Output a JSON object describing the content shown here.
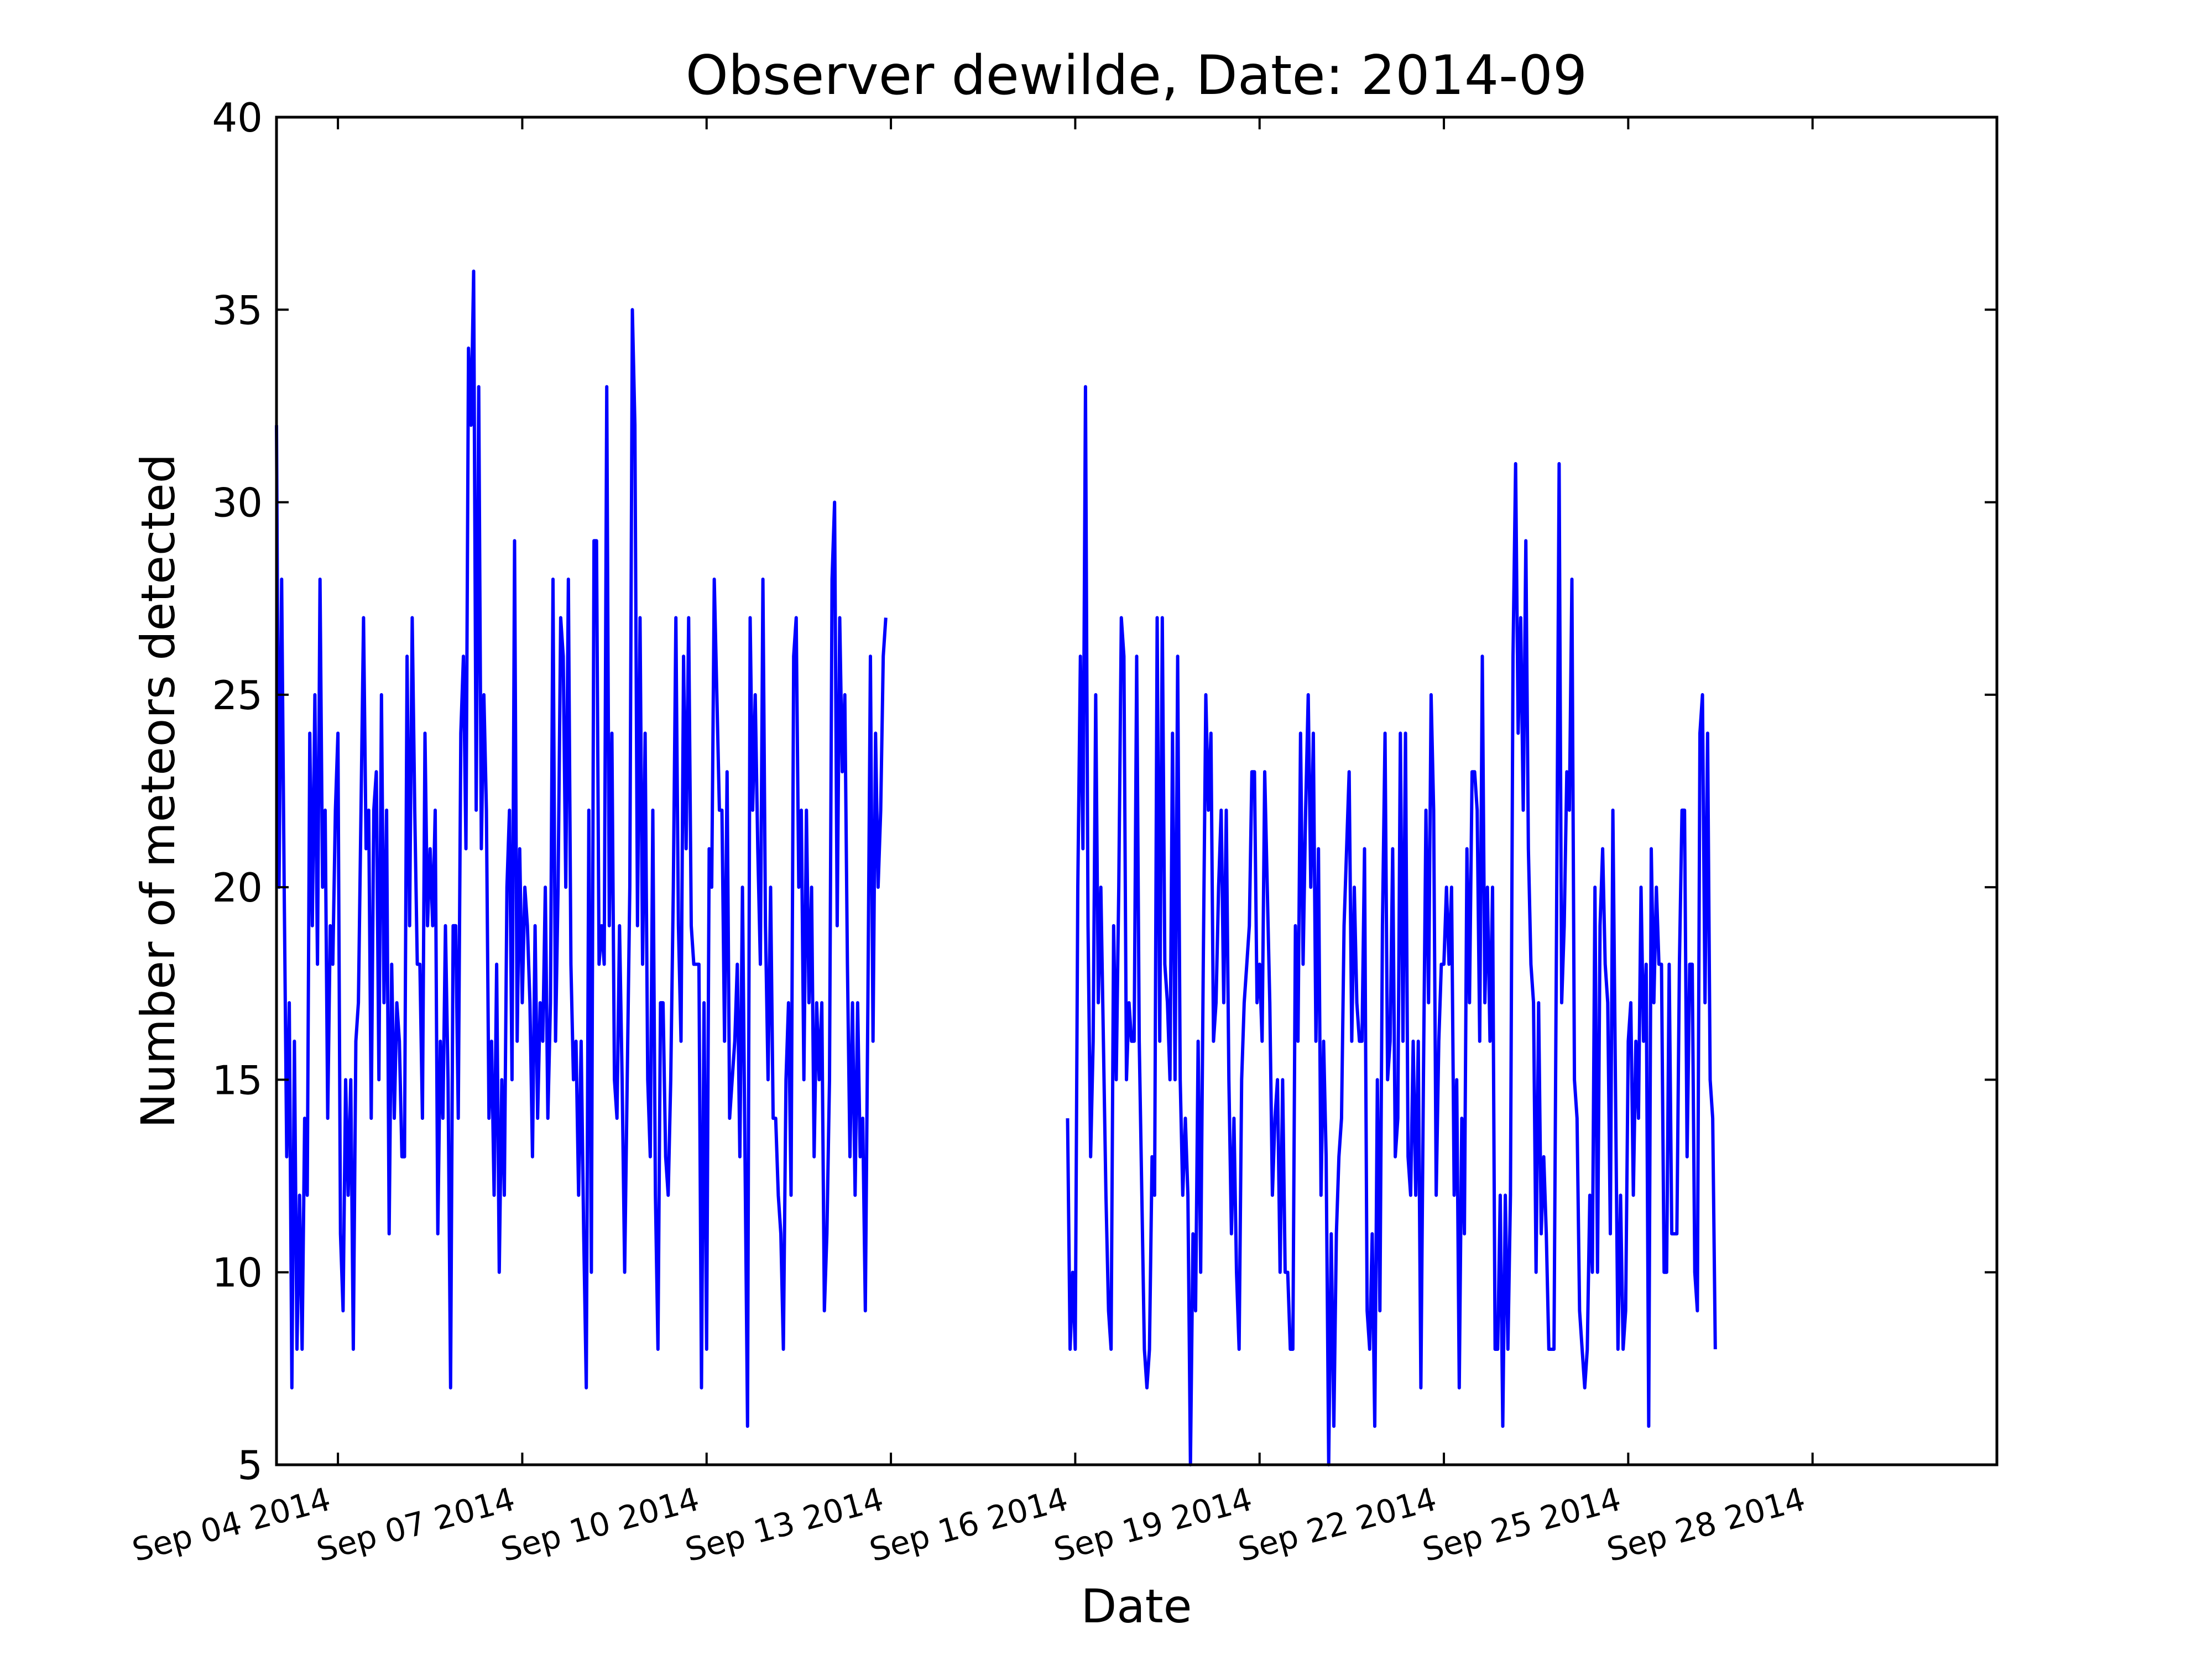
{
  "chart_data": {
    "type": "line",
    "title": "Observer dewilde, Date: 2014-09",
    "xlabel": "Date",
    "ylabel": "Number of meteors detected",
    "x_range": [
      "2014-09-03T00:00",
      "2014-10-01T00:00"
    ],
    "ylim": [
      5,
      40
    ],
    "yticks": [
      5,
      10,
      15,
      20,
      25,
      30,
      35,
      40
    ],
    "xticks": [
      {
        "date": "2014-09-04",
        "label": "Sep 04 2014"
      },
      {
        "date": "2014-09-07",
        "label": "Sep 07 2014"
      },
      {
        "date": "2014-09-10",
        "label": "Sep 10 2014"
      },
      {
        "date": "2014-09-13",
        "label": "Sep 13 2014"
      },
      {
        "date": "2014-09-16",
        "label": "Sep 16 2014"
      },
      {
        "date": "2014-09-19",
        "label": "Sep 19 2014"
      },
      {
        "date": "2014-09-22",
        "label": "Sep 22 2014"
      },
      {
        "date": "2014-09-25",
        "label": "Sep 25 2014"
      },
      {
        "date": "2014-09-28",
        "label": "Sep 28 2014"
      }
    ],
    "grid": false,
    "legend": "none",
    "series": [
      {
        "color": "#0000ff",
        "segments": [
          {
            "start": "2014-09-03T00:00",
            "step_hours": 1,
            "values": [
              32,
              20,
              28,
              20,
              13,
              17,
              7,
              16,
              8,
              12,
              8,
              14,
              12,
              24,
              19,
              25,
              18,
              28,
              20,
              22,
              14,
              19,
              18,
              22,
              24,
              11,
              9,
              15,
              12,
              15,
              8,
              16,
              17,
              22,
              27,
              21,
              22,
              14,
              22,
              23,
              15,
              25,
              17,
              22,
              11,
              18,
              14,
              17,
              16,
              13,
              13,
              26,
              19,
              27,
              22,
              18,
              18,
              14,
              24,
              19,
              21,
              19,
              22,
              11,
              16,
              14,
              19,
              15,
              7,
              19,
              19,
              14,
              24,
              26,
              21,
              34,
              32,
              36,
              22,
              33,
              21,
              25,
              22,
              14,
              16,
              12,
              18,
              10,
              15,
              12,
              20,
              22,
              15,
              29,
              16,
              21,
              17,
              20,
              19,
              17,
              13,
              19,
              14,
              17,
              16,
              20,
              14,
              17,
              28,
              16,
              20,
              27,
              26,
              20,
              28,
              18,
              15,
              16,
              12,
              16,
              11,
              7,
              22,
              10,
              29,
              29,
              18,
              19,
              18,
              33,
              19,
              24,
              15,
              14,
              19,
              15,
              10,
              15,
              20,
              35,
              32,
              19,
              27,
              18,
              24,
              15,
              13,
              22,
              12,
              8,
              17,
              17,
              13,
              12,
              15,
              20,
              27,
              19,
              16,
              26,
              21,
              27,
              19,
              18,
              18,
              18,
              7,
              17,
              8,
              21,
              20,
              28,
              25,
              22,
              22,
              16,
              23,
              14,
              15,
              16,
              18,
              13,
              20,
              13,
              6,
              27,
              22,
              25,
              21,
              18,
              28,
              19,
              15,
              20,
              14,
              14,
              12,
              11,
              8,
              15,
              17,
              12,
              26,
              27,
              20,
              22,
              15,
              22,
              17,
              20,
              13,
              17,
              15,
              17,
              9,
              11,
              15,
              28,
              30,
              19,
              27,
              23,
              25,
              18,
              13,
              17,
              12,
              17,
              13,
              14,
              9,
              17,
              26,
              16,
              24,
              20,
              22,
              26,
              27
            ]
          },
          {
            "start": "2014-09-15T21:00",
            "step_hours": 1,
            "values": [
              14,
              8,
              10,
              8,
              20,
              26,
              21,
              33,
              19,
              13,
              16,
              25,
              17,
              20,
              16,
              12,
              9,
              8,
              19,
              15,
              20,
              27,
              26,
              15,
              17,
              16,
              16,
              26,
              16,
              12,
              8,
              7,
              8,
              13,
              12,
              27,
              16,
              27,
              18,
              17,
              15,
              24,
              15,
              26,
              15,
              12,
              14,
              12,
              5,
              11,
              9,
              16,
              10,
              18,
              25,
              22,
              24,
              16,
              17,
              20,
              22,
              17,
              22,
              15,
              11,
              14,
              10,
              8,
              15,
              17,
              18,
              19,
              23,
              23,
              17,
              18,
              16,
              23,
              20,
              17,
              12,
              14,
              15,
              10,
              15,
              10,
              10,
              8,
              8,
              19,
              16,
              24,
              18,
              22,
              25,
              20,
              24,
              16,
              21,
              12,
              16,
              13,
              5,
              11,
              6,
              11,
              13,
              14,
              19,
              21,
              23,
              16,
              20,
              17,
              16,
              16,
              21,
              9,
              8,
              11,
              6,
              15,
              9,
              19,
              24,
              15,
              16,
              21,
              13,
              14,
              24,
              16,
              24,
              13,
              12,
              16,
              12,
              16,
              7,
              15,
              22,
              17,
              25,
              22,
              12,
              16,
              18,
              18,
              20,
              18,
              20,
              12,
              15,
              7,
              14,
              11,
              21,
              17,
              23,
              23,
              22,
              16,
              26,
              17,
              20,
              16,
              20,
              8,
              8,
              12,
              6,
              12,
              8,
              12,
              26,
              31,
              24,
              27,
              22,
              29,
              21,
              18,
              17,
              10,
              17,
              11,
              13,
              11,
              8,
              8,
              8,
              19,
              31,
              17,
              19,
              23,
              22,
              28,
              15,
              14,
              9,
              8,
              7,
              8,
              12,
              10,
              20,
              10,
              19,
              21,
              18,
              17,
              11,
              22,
              15,
              8,
              12,
              8,
              9,
              16,
              17,
              12,
              16,
              14,
              20,
              16,
              18,
              6,
              21,
              17,
              20,
              18,
              18,
              10,
              10,
              18,
              11,
              11,
              11,
              18,
              22,
              22,
              13,
              18,
              18,
              10,
              9,
              24,
              25,
              17,
              24,
              15,
              14,
              8
            ]
          }
        ]
      }
    ]
  }
}
